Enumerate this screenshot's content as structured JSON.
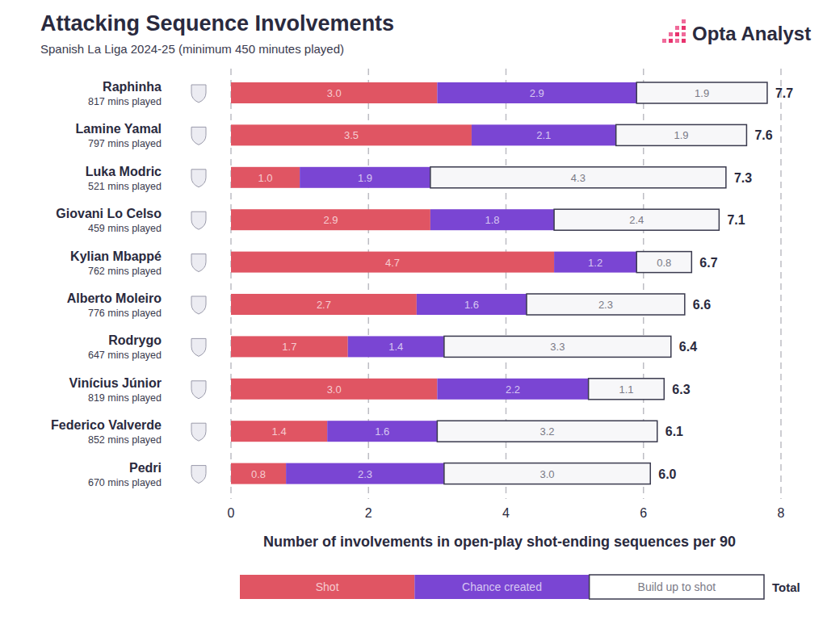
{
  "chart_data": {
    "type": "bar",
    "orientation": "horizontal",
    "stacked": true,
    "data_labels": true,
    "grid": true,
    "legend": "bottom",
    "title": "Attacking Sequence Involvements",
    "subtitle": "Spanish La Liga 2024-25 (minimum 450 minutes played)",
    "brand": "Opta Analyst",
    "xlabel": "Number of involvements in open-play shot-ending sequences per 90",
    "xlim": [
      0,
      8
    ],
    "xticks": [
      0,
      2,
      4,
      6,
      8
    ],
    "categories": [
      "Raphinha",
      "Lamine Yamal",
      "Luka Modric",
      "Giovani Lo Celso",
      "Kylian Mbappé",
      "Alberto Moleiro",
      "Rodrygo",
      "Vinícius Júnior",
      "Federico Valverde",
      "Pedri"
    ],
    "category_notes": [
      "817 mins played",
      "797 mins played",
      "521 mins played",
      "459 mins played",
      "762 mins played",
      "776 mins played",
      "647 mins played",
      "819 mins played",
      "852 mins played",
      "670 mins played"
    ],
    "series": [
      {
        "name": "Shot",
        "color": "#e05563",
        "values": [
          3.0,
          3.5,
          1.0,
          2.9,
          4.7,
          2.7,
          1.7,
          3.0,
          1.4,
          0.8
        ],
        "value_labels": [
          "3.0",
          "3.5",
          "1.0",
          "2.9",
          "4.7",
          "2.7",
          "1.7",
          "3.0",
          "1.4",
          "0.8"
        ]
      },
      {
        "name": "Chance created",
        "color": "#7a45d3",
        "values": [
          2.9,
          2.1,
          1.9,
          1.8,
          1.2,
          1.6,
          1.4,
          2.2,
          1.6,
          2.3
        ],
        "value_labels": [
          "2.9",
          "2.1",
          "1.9",
          "1.8",
          "1.2",
          "1.6",
          "1.4",
          "2.2",
          "1.6",
          "2.3"
        ]
      },
      {
        "name": "Build up to shot",
        "color": "#f7f7f9",
        "values": [
          1.9,
          1.9,
          4.3,
          2.4,
          0.8,
          2.3,
          3.3,
          1.1,
          3.2,
          3.0
        ],
        "value_labels": [
          "1.9",
          "1.9",
          "4.3",
          "2.4",
          "0.8",
          "2.3",
          "3.3",
          "1.1",
          "3.2",
          "3.0"
        ]
      }
    ],
    "total_label": "Total",
    "totals": [
      7.7,
      7.6,
      7.3,
      7.1,
      6.7,
      6.6,
      6.4,
      6.3,
      6.1,
      6.0
    ],
    "total_labels": [
      "7.7",
      "7.6",
      "7.3",
      "7.1",
      "6.7",
      "6.6",
      "6.4",
      "6.3",
      "6.1",
      "6.0"
    ]
  }
}
